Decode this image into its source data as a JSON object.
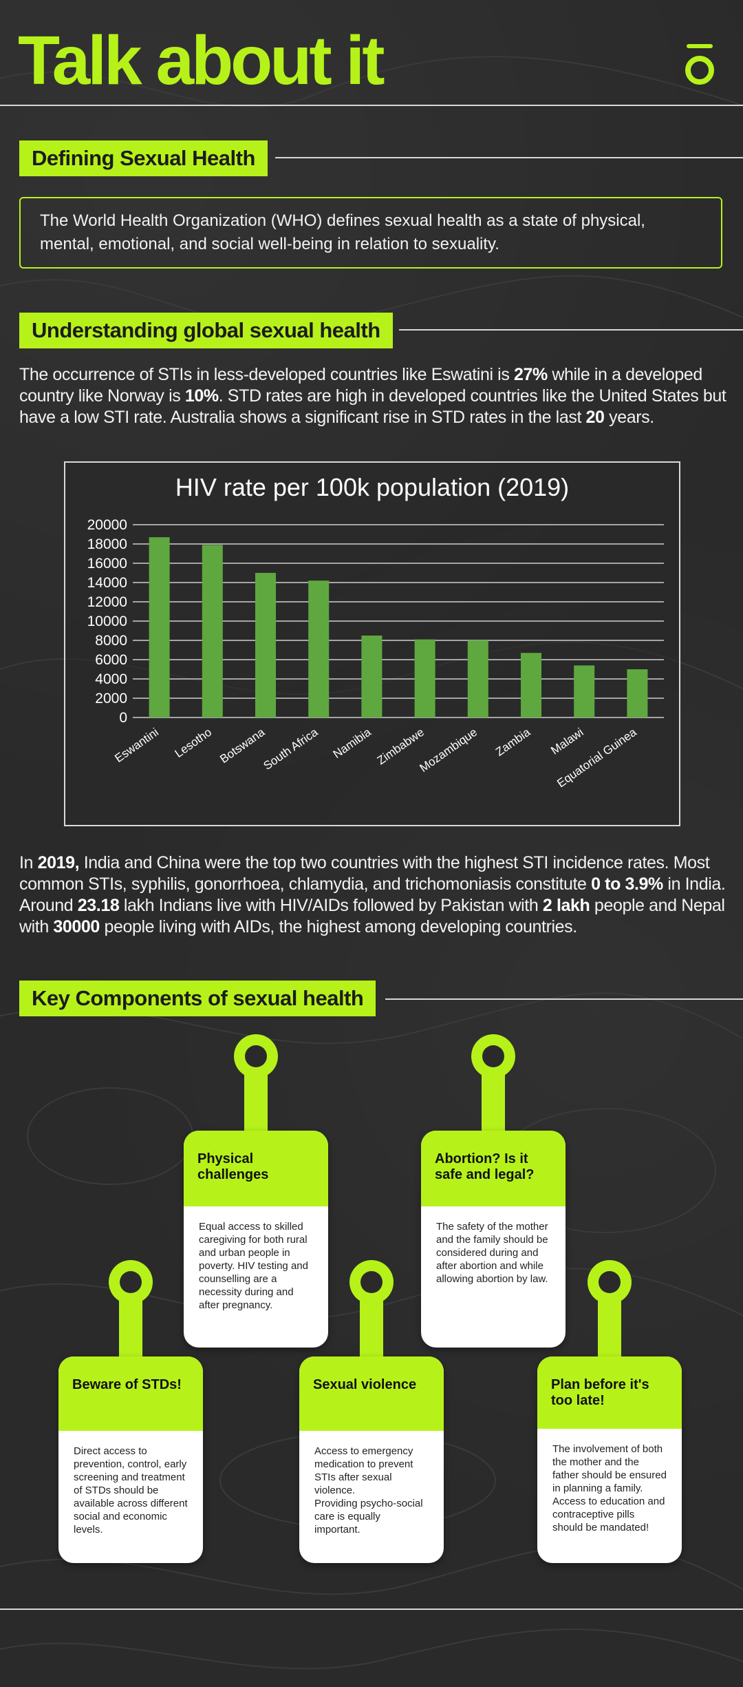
{
  "header": {
    "title": "Talk about it",
    "logo_icon": "brand-logo-icon"
  },
  "colors": {
    "accent": "#b6f21a",
    "background": "#2a2a2a",
    "bar": "#5fa83f",
    "card_body": "#ffffff"
  },
  "defining": {
    "heading": "Defining Sexual Health",
    "text": "The World Health Organization (WHO) defines sexual health as a state of physical, mental, emotional, and social well-being in relation to sexuality."
  },
  "global": {
    "heading": "Understanding global sexual health",
    "p1": "The occurrence of STIs in less-developed countries like Eswatini is 27% while in a developed country like Norway is 10%. STD rates are high in developed countries like the United States but have a low STI rate. Australia shows a significant rise in STD rates in the last 20 years.",
    "p2": "In 2019, India and China were the top two countries with the highest STI incidence rates. Most common STIs, syphilis, gonorrhoea, chlamydia, and trichomoniasis constitute 0 to 3.9% in India. Around 23.18 lakh Indians live with HIV/AIDs followed by Pakistan with 2 lakh people and Nepal with 30000 people living with AIDs, the highest among developing countries."
  },
  "chart_data": {
    "type": "bar",
    "title": "HIV rate per 100k population (2019)",
    "xlabel": "",
    "ylabel": "",
    "categories": [
      "Eswantini",
      "Lesotho",
      "Botswana",
      "South Africa",
      "Namibia",
      "Zimbabwe",
      "Mozambique",
      "Zambia",
      "Malawi",
      "Equatorial Guinea"
    ],
    "values": [
      18700,
      17900,
      15000,
      14200,
      8500,
      8100,
      8000,
      6700,
      5400,
      5000
    ],
    "ylim": [
      0,
      20000
    ],
    "yticks": [
      0,
      2000,
      4000,
      6000,
      8000,
      10000,
      12000,
      14000,
      16000,
      18000,
      20000
    ],
    "grid": true
  },
  "components": {
    "heading": "Key Components of sexual health",
    "cards": [
      {
        "title": "Physical challenges",
        "body": "Equal access to skilled caregiving for both rural and urban people in poverty. HIV testing and counselling are a necessity during and after pregnancy."
      },
      {
        "title": "Abortion? Is it safe and legal?",
        "body": "The safety of the mother and the family should be considered during and after abortion and while allowing abortion by law."
      },
      {
        "title": "Beware of  STDs!",
        "body": "Direct access to prevention, control, early screening and treatment of STDs should be available across different social and economic levels."
      },
      {
        "title": "Sexual violence",
        "body": "Access to emergency medication to prevent STIs after sexual violence.\nProviding psycho-social care is equally important."
      },
      {
        "title": "Plan before it's too late!",
        "body": "The involvement of both the mother and the father should be ensured in planning a family.\nAccess to education and contraceptive pills should be mandated!"
      }
    ]
  }
}
